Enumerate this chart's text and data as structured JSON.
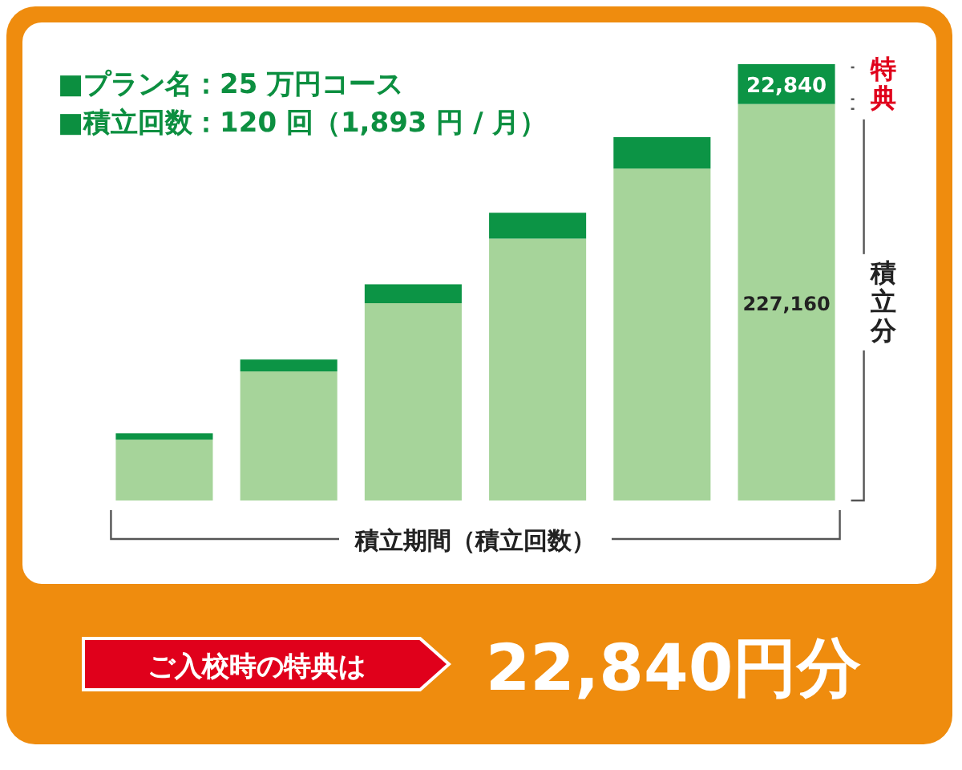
{
  "chart_data": {
    "type": "bar",
    "stacked": true,
    "categories": [
      null,
      null,
      null,
      null,
      null,
      null
    ],
    "series": [
      {
        "color": "#a6d49a",
        "values": [
          34870,
          73960,
          113050,
          150040,
          190190,
          227160
        ],
        "value_labels": [
          null,
          null,
          null,
          null,
          null,
          "227,160"
        ]
      },
      {
        "color": "#0c9445",
        "values": [
          3610,
          6810,
          10820,
          14830,
          18030,
          22840
        ],
        "value_labels": [
          null,
          null,
          null,
          null,
          null,
          "22,840"
        ]
      }
    ],
    "tick_labels": false,
    "annotations": [
      "■プラン名：25 万円コース",
      "■積立回数：120 回（1,893 円 / 月）",
      "特典",
      "積立分",
      "積立期間（積立回数）",
      "ご入校時の特典は",
      "22,840円分"
    ]
  }
}
